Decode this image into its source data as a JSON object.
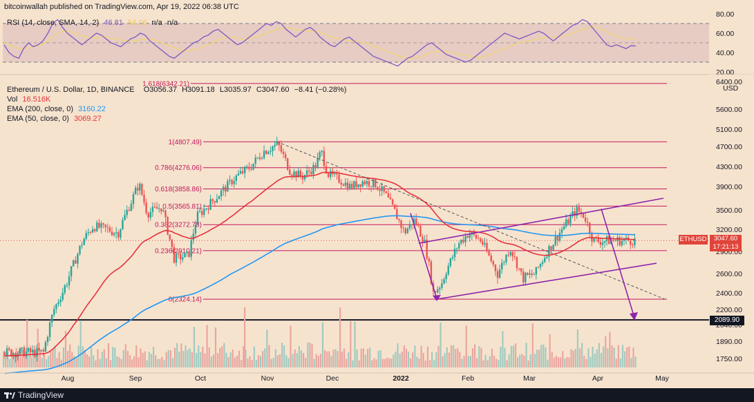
{
  "header": {
    "published": "bitcoinwallah published on TradingView.com, Apr 19, 2022 06:38 UTC"
  },
  "rsi": {
    "label": "RSI (14, close, SMA, 14, 2)",
    "value": "46.81",
    "sma_value": "54.06",
    "na1": "n/a",
    "na2": "n/a",
    "upper_band": 70,
    "lower_band": 30,
    "ticks": [
      "80.00",
      "60.00",
      "40.00",
      "20.00"
    ],
    "line_color": "#7e57c2",
    "sma_color": "#f2d37a",
    "values": [
      48,
      40,
      36,
      34,
      44,
      50,
      46,
      48,
      52,
      60,
      70,
      74,
      66,
      60,
      56,
      52,
      48,
      52,
      56,
      60,
      58,
      54,
      50,
      48,
      46,
      50,
      54,
      56,
      60,
      58,
      52,
      48,
      44,
      40,
      36,
      34,
      38,
      42,
      46,
      50,
      52,
      56,
      58,
      62,
      64,
      60,
      56,
      52,
      48,
      50,
      54,
      58,
      62,
      66,
      70,
      68,
      72,
      70,
      64,
      60,
      56,
      60,
      64,
      66,
      62,
      56,
      52,
      48,
      46,
      50,
      54,
      56,
      52,
      48,
      44,
      40,
      36,
      34,
      32,
      30,
      28,
      26,
      30,
      34,
      36,
      40,
      44,
      48,
      50,
      46,
      42,
      38,
      36,
      34,
      32,
      30,
      32,
      36,
      40,
      44,
      48,
      52,
      56,
      60,
      58,
      56,
      54,
      56,
      58,
      60,
      62,
      60,
      56,
      52,
      56,
      60,
      64,
      68,
      70,
      74,
      72,
      66,
      60,
      54,
      48,
      46,
      48,
      46,
      44,
      47,
      46.81
    ],
    "sma_values": [
      50,
      48,
      46,
      44,
      44,
      45,
      46,
      47,
      49,
      52,
      56,
      60,
      62,
      62,
      61,
      59,
      57,
      56,
      55,
      55,
      56,
      56,
      55,
      54,
      53,
      52,
      52,
      52,
      53,
      54,
      54,
      53,
      51,
      49,
      47,
      45,
      43,
      42,
      42,
      43,
      44,
      46,
      48,
      50,
      53,
      55,
      56,
      56,
      55,
      54,
      54,
      55,
      56,
      58,
      60,
      62,
      64,
      65,
      66,
      65,
      64,
      63,
      62,
      62,
      62,
      61,
      59,
      57,
      55,
      54,
      53,
      52,
      52,
      51,
      50,
      49,
      47,
      45,
      43,
      41,
      39,
      37,
      35,
      34,
      34,
      35,
      36,
      38,
      40,
      41,
      41,
      41,
      40,
      39,
      38,
      37,
      36,
      35,
      35,
      36,
      38,
      40,
      42,
      44,
      46,
      48,
      50,
      51,
      52,
      53,
      54,
      55,
      56,
      56,
      56,
      57,
      58,
      60,
      62,
      64,
      66,
      67,
      66,
      64,
      62,
      59,
      57,
      55,
      54.5,
      54.2,
      54.06
    ]
  },
  "price": {
    "title": "Ethereum / U.S. Dollar, 1D, BINANCE",
    "open": "O3056.37",
    "high": "H3091.18",
    "low": "L3035.97",
    "close": "C3047.60",
    "change": "−8.41 (−0.28%)",
    "vol_label": "Vol",
    "vol_value": "16.516K",
    "ema200_label": "EMA (200, close, 0)",
    "ema200_value": "3160.22",
    "ema50_label": "EMA (50, close, 0)",
    "ema50_value": "3069.27",
    "currency": "USD",
    "symbol_tag": "ETHUSD",
    "last_price": "3047.60",
    "countdown": "17:21:13",
    "level_tag": "2089.90",
    "up_color": "#26a69a",
    "down_color": "#ef5350",
    "ema200_color": "#2196f3",
    "ema50_color": "#e5323b"
  },
  "chart_data": {
    "type": "candlestick",
    "x_ticks": [
      "Aug",
      "Sep",
      "Oct",
      "Nov",
      "Dec",
      "2022",
      "Feb",
      "Mar",
      "Apr",
      "May"
    ],
    "y_ticks": [
      "6400.00",
      "5600.00",
      "5100.00",
      "4700.00",
      "4300.00",
      "3900.00",
      "3500.00",
      "3200.00",
      "2900.00",
      "2600.00",
      "2400.00",
      "2200.00",
      "2040.00",
      "1890.00",
      "1750.00"
    ],
    "y_tick_values": [
      6400,
      5600,
      5100,
      4700,
      4300,
      3900,
      3500,
      3200,
      2900,
      2600,
      2400,
      2200,
      2040,
      1890,
      1750
    ],
    "fib_levels": [
      {
        "label": "1.618(6342.21)",
        "value": 6342.21
      },
      {
        "label": "1(4807.49)",
        "value": 4807.49
      },
      {
        "label": "0.786(4276.06)",
        "value": 4276.06
      },
      {
        "label": "0.618(3858.86)",
        "value": 3858.86
      },
      {
        "label": "0.5(3565.81)",
        "value": 3565.81
      },
      {
        "label": "0.382(3272.78)",
        "value": 3272.78
      },
      {
        "label": "0.236(2910.21)",
        "value": 2910.21
      },
      {
        "label": "0(2324.14)",
        "value": 2324.14
      }
    ],
    "support_level": 2089.9,
    "close_path": [
      [
        "2021-07-20",
        1800
      ],
      [
        "2021-07-25",
        2200
      ],
      [
        "2021-08-01",
        2550
      ],
      [
        "2021-08-08",
        3050
      ],
      [
        "2021-08-13",
        3250
      ],
      [
        "2021-08-20",
        3200
      ],
      [
        "2021-08-25",
        3150
      ],
      [
        "2021-09-01",
        3700
      ],
      [
        "2021-09-04",
        3950
      ],
      [
        "2021-09-08",
        3450
      ],
      [
        "2021-09-15",
        3550
      ],
      [
        "2021-09-21",
        2800
      ],
      [
        "2021-09-28",
        2850
      ],
      [
        "2021-10-02",
        3400
      ],
      [
        "2021-10-08",
        3600
      ],
      [
        "2021-10-15",
        3850
      ],
      [
        "2021-10-21",
        4100
      ],
      [
        "2021-10-28",
        4300
      ],
      [
        "2021-11-03",
        4600
      ],
      [
        "2021-11-10",
        4750
      ],
      [
        "2021-11-16",
        4200
      ],
      [
        "2021-11-22",
        4100
      ],
      [
        "2021-11-28",
        4300
      ],
      [
        "2021-12-01",
        4600
      ],
      [
        "2021-12-04",
        4150
      ],
      [
        "2021-12-09",
        4050
      ],
      [
        "2021-12-15",
        3900
      ],
      [
        "2021-12-21",
        4000
      ],
      [
        "2021-12-27",
        3950
      ],
      [
        "2022-01-01",
        3750
      ],
      [
        "2022-01-05",
        3500
      ],
      [
        "2022-01-10",
        3150
      ],
      [
        "2022-01-15",
        3350
      ],
      [
        "2022-01-20",
        3000
      ],
      [
        "2022-01-24",
        2400
      ],
      [
        "2022-01-28",
        2500
      ],
      [
        "2022-02-05",
        3000
      ],
      [
        "2022-02-10",
        3150
      ],
      [
        "2022-02-16",
        3050
      ],
      [
        "2022-02-24",
        2600
      ],
      [
        "2022-03-02",
        2950
      ],
      [
        "2022-03-08",
        2550
      ],
      [
        "2022-03-14",
        2600
      ],
      [
        "2022-03-20",
        2900
      ],
      [
        "2022-03-27",
        3200
      ],
      [
        "2022-04-03",
        3500
      ],
      [
        "2022-04-07",
        3400
      ],
      [
        "2022-04-11",
        3050
      ],
      [
        "2022-04-15",
        3040
      ],
      [
        "2022-04-19",
        3047.6
      ]
    ]
  }
}
